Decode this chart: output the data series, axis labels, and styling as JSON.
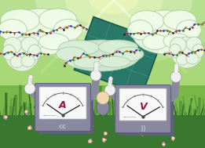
{
  "bg_top_color": "#a8d878",
  "bg_mid_color": "#78b848",
  "bg_bot_color": "#4a8830",
  "sky_glow_color": "#e8f8c0",
  "panel_color": "#2a7868",
  "panel_highlight": "#3a9888",
  "panel_shadow": "#1a5848",
  "cloud_fill": "#e8f5e2",
  "cloud_fill2": "#d8eed8",
  "cloud_edge": "#a8c8a0",
  "cloud_glow": "#f0fce8",
  "meter_body": "#8888a0",
  "meter_body_dark": "#606078",
  "meter_face": "#f8f8f8",
  "meter_face_edge": "#cccccc",
  "needle_color": "#222222",
  "label_A_color": "#991133",
  "label_V_color": "#881133",
  "hand_color": "#f0f0f0",
  "hand_edge": "#999999",
  "grass_dark": "#2a6020",
  "grass_mid": "#3a7830",
  "grass_light": "#5a9840",
  "flower_purple": "#cc88cc",
  "flower_pink": "#dd99bb",
  "glow_white": "#fffff0",
  "quote_color": "#bbbbcc",
  "veg_dark": "#1a5010",
  "veg_mid": "#2a6820"
}
